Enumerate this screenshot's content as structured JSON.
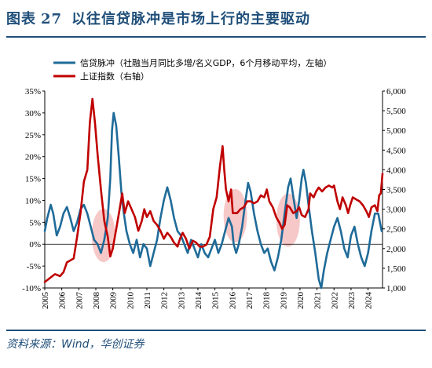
{
  "header": {
    "prefix": "图表",
    "number": "27",
    "title": "以往信贷脉冲是市场上行的主要驱动"
  },
  "source": "资料来源：Wind，华创证券",
  "colors": {
    "credit_pulse": "#1f6b99",
    "sh_index": "#c00000",
    "highlight": "#f4b6b6",
    "rule": "#1f4e79"
  },
  "chart_data": {
    "type": "line",
    "legend": [
      "信贷脉冲（社融当月同比多增/名义GDP，6个月移动平均，左轴）",
      "上证指数（右轴）"
    ],
    "x_tick_labels": [
      "2005",
      "2006",
      "2007",
      "2008",
      "2009",
      "2010",
      "2011",
      "2012",
      "2013",
      "2014",
      "2015",
      "2016",
      "2017",
      "2018",
      "2019",
      "2020",
      "2021",
      "2022",
      "2023",
      "2024"
    ],
    "xlim": [
      2005.0,
      2024.85
    ],
    "left_axis": {
      "ylim": [
        -10,
        35
      ],
      "ticks": [
        -10,
        -5,
        0,
        5,
        10,
        15,
        20,
        25,
        30,
        35
      ],
      "tick_labels": [
        "-10%",
        "-5%",
        "0%",
        "5%",
        "10%",
        "15%",
        "20%",
        "25%",
        "30%",
        "35%"
      ]
    },
    "right_axis": {
      "ylim": [
        1000,
        6000
      ],
      "ticks": [
        1000,
        1500,
        2000,
        2500,
        3000,
        3500,
        4000,
        4500,
        5000,
        5500,
        6000
      ],
      "tick_labels": [
        "1,000",
        "1,500",
        "2,000",
        "2,500",
        "3,000",
        "3,500",
        "4,000",
        "4,500",
        "5,000",
        "5,500",
        "6,000"
      ]
    },
    "highlights": [
      {
        "x": 2008.45,
        "y_left": 2.0
      },
      {
        "x": 2016.2,
        "y_left": 6.5
      },
      {
        "x": 2019.3,
        "y_left": 5.5
      }
    ],
    "series": [
      {
        "name": "信贷脉冲（社融当月同比多增/名义GDP，6个月移动平均，左轴）",
        "axis": "left",
        "points": [
          [
            2005.0,
            3
          ],
          [
            2005.15,
            6
          ],
          [
            2005.35,
            9
          ],
          [
            2005.5,
            7
          ],
          [
            2005.7,
            2
          ],
          [
            2005.9,
            4
          ],
          [
            2006.1,
            7
          ],
          [
            2006.3,
            8.5
          ],
          [
            2006.5,
            6
          ],
          [
            2006.7,
            3
          ],
          [
            2006.9,
            5
          ],
          [
            2007.1,
            8
          ],
          [
            2007.3,
            9
          ],
          [
            2007.5,
            7
          ],
          [
            2007.7,
            4
          ],
          [
            2007.9,
            1
          ],
          [
            2008.1,
            0
          ],
          [
            2008.3,
            -2
          ],
          [
            2008.5,
            1
          ],
          [
            2008.7,
            6
          ],
          [
            2008.85,
            15
          ],
          [
            2008.95,
            26
          ],
          [
            2009.05,
            30
          ],
          [
            2009.2,
            27
          ],
          [
            2009.35,
            20
          ],
          [
            2009.5,
            12
          ],
          [
            2009.65,
            7
          ],
          [
            2009.8,
            3
          ],
          [
            2010.0,
            0
          ],
          [
            2010.2,
            -2
          ],
          [
            2010.4,
            1
          ],
          [
            2010.6,
            -3
          ],
          [
            2010.8,
            0
          ],
          [
            2011.0,
            -1
          ],
          [
            2011.2,
            -5
          ],
          [
            2011.4,
            -2
          ],
          [
            2011.6,
            1
          ],
          [
            2011.8,
            6
          ],
          [
            2012.0,
            10
          ],
          [
            2012.2,
            13
          ],
          [
            2012.4,
            10
          ],
          [
            2012.6,
            6
          ],
          [
            2012.8,
            3
          ],
          [
            2013.0,
            2
          ],
          [
            2013.2,
            0
          ],
          [
            2013.4,
            -2
          ],
          [
            2013.6,
            1
          ],
          [
            2013.8,
            -1
          ],
          [
            2014.0,
            -3
          ],
          [
            2014.2,
            0
          ],
          [
            2014.4,
            -2
          ],
          [
            2014.6,
            -3
          ],
          [
            2014.8,
            -1
          ],
          [
            2015.0,
            1
          ],
          [
            2015.2,
            -2
          ],
          [
            2015.4,
            0
          ],
          [
            2015.6,
            3
          ],
          [
            2015.8,
            6
          ],
          [
            2016.0,
            4
          ],
          [
            2016.1,
            0
          ],
          [
            2016.25,
            -2
          ],
          [
            2016.4,
            0
          ],
          [
            2016.6,
            4
          ],
          [
            2016.8,
            10
          ],
          [
            2016.95,
            14
          ],
          [
            2017.1,
            12
          ],
          [
            2017.3,
            7
          ],
          [
            2017.5,
            3
          ],
          [
            2017.7,
            0
          ],
          [
            2017.9,
            -2
          ],
          [
            2018.1,
            -1
          ],
          [
            2018.3,
            -4
          ],
          [
            2018.5,
            -6
          ],
          [
            2018.7,
            -3
          ],
          [
            2018.9,
            1
          ],
          [
            2019.1,
            7
          ],
          [
            2019.3,
            13
          ],
          [
            2019.45,
            15
          ],
          [
            2019.6,
            11
          ],
          [
            2019.8,
            6
          ],
          [
            2019.95,
            10
          ],
          [
            2020.1,
            15
          ],
          [
            2020.2,
            17
          ],
          [
            2020.35,
            14
          ],
          [
            2020.5,
            9
          ],
          [
            2020.7,
            3
          ],
          [
            2020.9,
            -2
          ],
          [
            2021.1,
            -8
          ],
          [
            2021.25,
            -10
          ],
          [
            2021.4,
            -6
          ],
          [
            2021.6,
            -2
          ],
          [
            2021.8,
            1
          ],
          [
            2022.0,
            4
          ],
          [
            2022.2,
            6
          ],
          [
            2022.4,
            3
          ],
          [
            2022.6,
            -1
          ],
          [
            2022.8,
            -3
          ],
          [
            2023.0,
            2
          ],
          [
            2023.2,
            4
          ],
          [
            2023.4,
            0
          ],
          [
            2023.6,
            -3
          ],
          [
            2023.8,
            -5
          ],
          [
            2024.0,
            -2
          ],
          [
            2024.2,
            3
          ],
          [
            2024.4,
            7
          ],
          [
            2024.6,
            7
          ],
          [
            2024.8,
            3
          ]
        ]
      },
      {
        "name": "上证指数（右轴）",
        "axis": "right",
        "points": [
          [
            2005.0,
            1150
          ],
          [
            2005.3,
            1250
          ],
          [
            2005.6,
            1350
          ],
          [
            2005.9,
            1300
          ],
          [
            2006.1,
            1400
          ],
          [
            2006.3,
            1650
          ],
          [
            2006.5,
            1700
          ],
          [
            2006.7,
            1750
          ],
          [
            2006.9,
            2300
          ],
          [
            2007.1,
            2900
          ],
          [
            2007.3,
            3700
          ],
          [
            2007.5,
            4000
          ],
          [
            2007.65,
            5200
          ],
          [
            2007.8,
            5800
          ],
          [
            2007.95,
            5200
          ],
          [
            2008.1,
            4400
          ],
          [
            2008.3,
            3500
          ],
          [
            2008.5,
            2700
          ],
          [
            2008.7,
            2300
          ],
          [
            2008.85,
            1800
          ],
          [
            2009.0,
            2000
          ],
          [
            2009.2,
            2500
          ],
          [
            2009.4,
            3000
          ],
          [
            2009.55,
            3400
          ],
          [
            2009.7,
            2900
          ],
          [
            2009.9,
            3200
          ],
          [
            2010.1,
            3000
          ],
          [
            2010.3,
            2800
          ],
          [
            2010.5,
            2450
          ],
          [
            2010.7,
            2700
          ],
          [
            2010.85,
            3000
          ],
          [
            2011.0,
            2800
          ],
          [
            2011.2,
            2950
          ],
          [
            2011.4,
            2700
          ],
          [
            2011.6,
            2600
          ],
          [
            2011.8,
            2450
          ],
          [
            2012.0,
            2250
          ],
          [
            2012.2,
            2400
          ],
          [
            2012.4,
            2300
          ],
          [
            2012.6,
            2150
          ],
          [
            2012.8,
            2050
          ],
          [
            2012.95,
            2250
          ],
          [
            2013.1,
            2400
          ],
          [
            2013.3,
            2250
          ],
          [
            2013.5,
            2000
          ],
          [
            2013.7,
            2200
          ],
          [
            2013.9,
            2150
          ],
          [
            2014.1,
            2050
          ],
          [
            2014.3,
            2050
          ],
          [
            2014.5,
            2100
          ],
          [
            2014.7,
            2300
          ],
          [
            2014.9,
            3000
          ],
          [
            2015.1,
            3300
          ],
          [
            2015.3,
            4100
          ],
          [
            2015.45,
            4600
          ],
          [
            2015.55,
            4000
          ],
          [
            2015.65,
            3500
          ],
          [
            2015.8,
            3200
          ],
          [
            2015.95,
            3500
          ],
          [
            2016.05,
            2900
          ],
          [
            2016.3,
            2900
          ],
          [
            2016.5,
            3000
          ],
          [
            2016.7,
            3050
          ],
          [
            2016.9,
            3200
          ],
          [
            2017.1,
            3200
          ],
          [
            2017.3,
            3150
          ],
          [
            2017.5,
            3200
          ],
          [
            2017.7,
            3350
          ],
          [
            2017.9,
            3300
          ],
          [
            2018.05,
            3500
          ],
          [
            2018.2,
            3200
          ],
          [
            2018.4,
            3050
          ],
          [
            2018.6,
            2800
          ],
          [
            2018.8,
            2650
          ],
          [
            2018.95,
            2500
          ],
          [
            2019.1,
            2600
          ],
          [
            2019.25,
            3100
          ],
          [
            2019.4,
            3050
          ],
          [
            2019.6,
            2900
          ],
          [
            2019.8,
            2950
          ],
          [
            2019.95,
            3050
          ],
          [
            2020.1,
            2850
          ],
          [
            2020.3,
            2800
          ],
          [
            2020.5,
            3000
          ],
          [
            2020.6,
            3400
          ],
          [
            2020.8,
            3300
          ],
          [
            2020.95,
            3450
          ],
          [
            2021.1,
            3550
          ],
          [
            2021.3,
            3450
          ],
          [
            2021.5,
            3550
          ],
          [
            2021.7,
            3600
          ],
          [
            2021.9,
            3550
          ],
          [
            2022.0,
            3600
          ],
          [
            2022.2,
            3200
          ],
          [
            2022.35,
            3000
          ],
          [
            2022.5,
            3300
          ],
          [
            2022.7,
            3100
          ],
          [
            2022.83,
            2900
          ],
          [
            2022.95,
            3100
          ],
          [
            2023.1,
            3300
          ],
          [
            2023.3,
            3250
          ],
          [
            2023.5,
            3200
          ],
          [
            2023.7,
            3100
          ],
          [
            2023.9,
            2950
          ],
          [
            2024.05,
            2800
          ],
          [
            2024.2,
            3050
          ],
          [
            2024.4,
            3100
          ],
          [
            2024.55,
            2950
          ],
          [
            2024.65,
            3350
          ],
          [
            2024.75,
            3400
          ],
          [
            2024.85,
            3900
          ]
        ]
      }
    ]
  }
}
